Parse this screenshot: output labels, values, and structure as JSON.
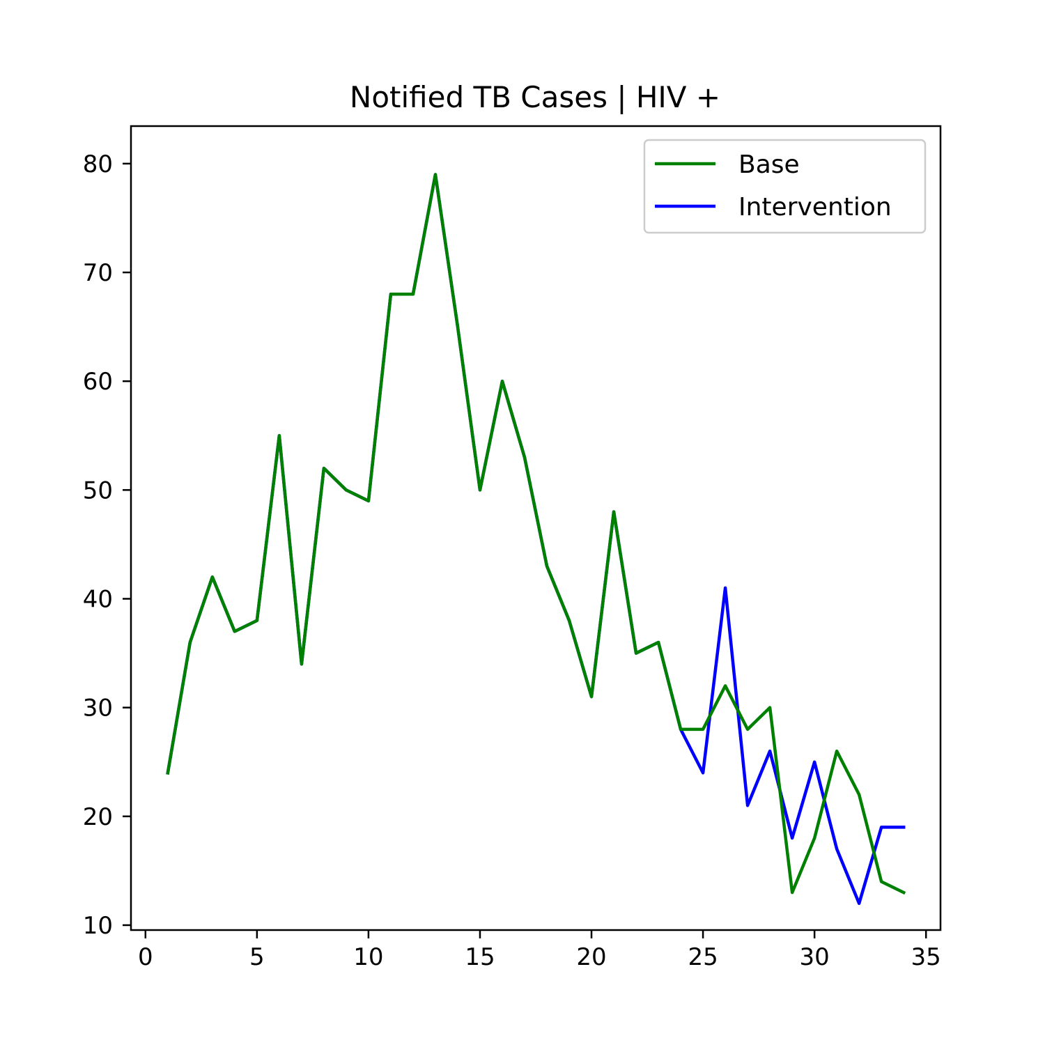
{
  "chart_data": {
    "type": "line",
    "title": "Notified TB Cases | HIV +",
    "xlabel": "",
    "ylabel": "",
    "xlim": [
      -0.65,
      35.65
    ],
    "ylim": [
      9.55,
      83.45
    ],
    "x_ticks": [
      0,
      5,
      10,
      15,
      20,
      25,
      30,
      35
    ],
    "y_ticks": [
      10,
      20,
      30,
      40,
      50,
      60,
      70,
      80
    ],
    "grid": false,
    "legend_position": "top-right",
    "x": [
      1,
      2,
      3,
      4,
      5,
      6,
      7,
      8,
      9,
      10,
      11,
      12,
      13,
      14,
      15,
      16,
      17,
      18,
      19,
      20,
      21,
      22,
      23,
      24,
      25,
      26,
      27,
      28,
      29,
      30,
      31,
      32,
      33,
      34
    ],
    "series": [
      {
        "name": "Intervention",
        "color": "#0000ff",
        "values": [
          24,
          36,
          42,
          37,
          38,
          55,
          34,
          52,
          50,
          49,
          68,
          68,
          79,
          65,
          50,
          60,
          53,
          43,
          38,
          31,
          48,
          35,
          36,
          28,
          24,
          41,
          21,
          26,
          18,
          25,
          17,
          12,
          19,
          19
        ]
      },
      {
        "name": "Base",
        "color": "#008000",
        "values": [
          24,
          36,
          42,
          37,
          38,
          55,
          34,
          52,
          50,
          49,
          68,
          68,
          79,
          65,
          50,
          60,
          53,
          43,
          38,
          31,
          48,
          35,
          36,
          28,
          28,
          32,
          28,
          30,
          13,
          18,
          26,
          22,
          14,
          13
        ]
      }
    ],
    "legend_order": [
      "Base",
      "Intervention"
    ]
  }
}
